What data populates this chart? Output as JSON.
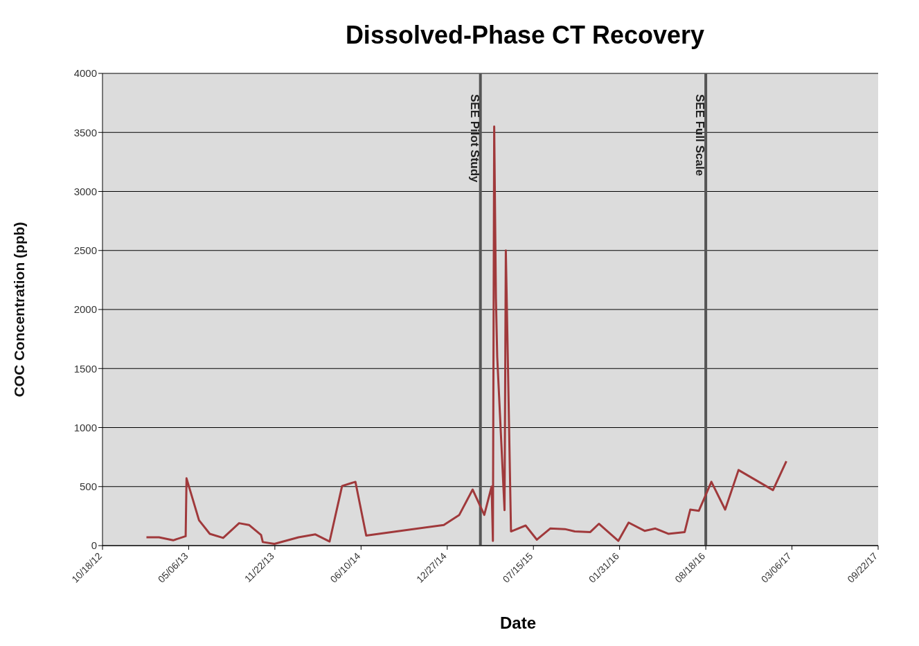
{
  "chart_data": {
    "type": "line",
    "title": "Dissolved-Phase CT Recovery",
    "xlabel": "Date",
    "ylabel": "COC Concentration (ppb)",
    "x": [
      "2013-01-28",
      "2013-02-26",
      "2013-03-31",
      "2013-04-29",
      "2013-05-01",
      "2013-05-30",
      "2013-06-24",
      "2013-07-25",
      "2013-08-31",
      "2013-09-23",
      "2013-10-21",
      "2013-10-25",
      "2013-11-21",
      "2014-01-16",
      "2014-02-24",
      "2014-03-29",
      "2014-04-27",
      "2014-05-28",
      "2014-06-22",
      "2014-12-19",
      "2015-01-24",
      "2015-02-24",
      "2015-03-23",
      "2015-04-09",
      "2015-04-12",
      "2015-04-15",
      "2015-04-19",
      "2015-04-22",
      "2015-05-09",
      "2015-05-12",
      "2015-05-24",
      "2015-06-27",
      "2015-07-23",
      "2015-08-23",
      "2015-09-26",
      "2015-10-19",
      "2015-11-24",
      "2015-12-14",
      "2016-01-28",
      "2016-02-21",
      "2016-03-29",
      "2016-04-23",
      "2016-05-23",
      "2016-06-30",
      "2016-07-13",
      "2016-08-02",
      "2016-08-31",
      "2016-10-02",
      "2016-11-02",
      "2017-01-21",
      "2017-02-21"
    ],
    "series": [
      {
        "color": "#a0393b",
        "values": [
          70,
          70,
          45,
          80,
          570,
          215,
          100,
          65,
          190,
          175,
          90,
          30,
          15,
          70,
          95,
          35,
          505,
          540,
          85,
          175,
          260,
          475,
          260,
          500,
          40,
          3550,
          2100,
          1600,
          300,
          2500,
          120,
          170,
          50,
          145,
          140,
          120,
          115,
          185,
          40,
          195,
          125,
          145,
          100,
          115,
          305,
          295,
          540,
          305,
          640,
          470,
          715
        ]
      }
    ],
    "xlim": [
      "2012-10-18",
      "2017-09-22"
    ],
    "xticks": [
      {
        "value": "2012-10-18",
        "label": "10/18/12"
      },
      {
        "value": "2013-05-06",
        "label": "05/06/13"
      },
      {
        "value": "2013-11-22",
        "label": "11/22/13"
      },
      {
        "value": "2014-06-10",
        "label": "06/10/14"
      },
      {
        "value": "2014-12-27",
        "label": "12/27/14"
      },
      {
        "value": "2015-07-15",
        "label": "07/15/15"
      },
      {
        "value": "2016-01-31",
        "label": "01/31/16"
      },
      {
        "value": "2016-08-18",
        "label": "08/18/16"
      },
      {
        "value": "2017-03-06",
        "label": "03/06/17"
      },
      {
        "value": "2017-09-22",
        "label": "09/22/17"
      }
    ],
    "ylim": [
      0,
      4000
    ],
    "yticks": [
      0,
      500,
      1000,
      1500,
      2000,
      2500,
      3000,
      3500,
      4000
    ],
    "grid": "y",
    "ref_lines": [
      {
        "axis": "x",
        "value": "2015-03-14",
        "label": "SEE Pilot Study",
        "color": "#555555"
      },
      {
        "axis": "x",
        "value": "2016-08-18",
        "label": "SEE Full Scale",
        "color": "#555555"
      }
    ]
  }
}
